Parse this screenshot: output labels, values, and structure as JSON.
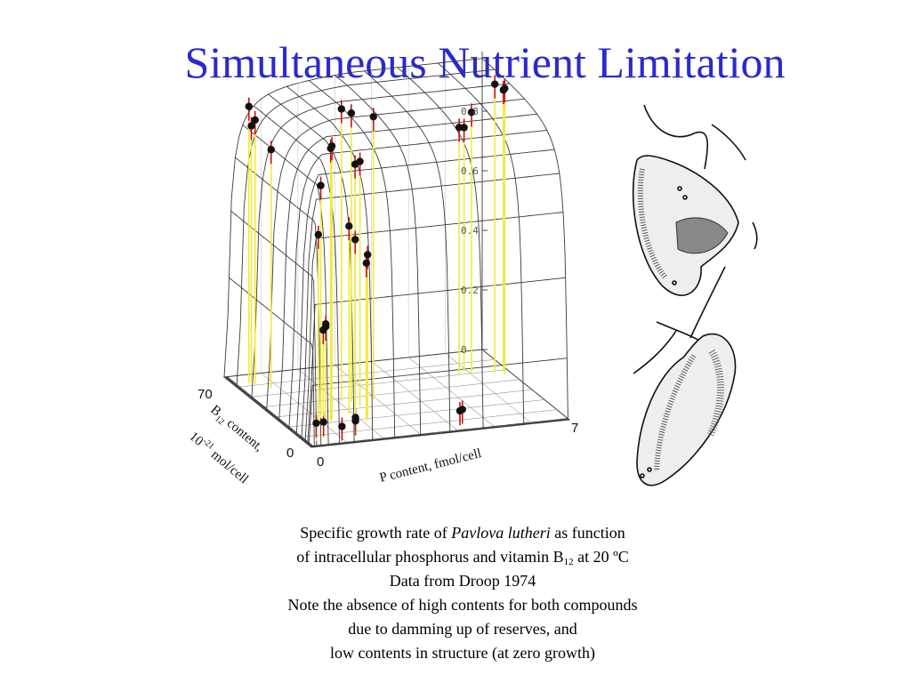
{
  "title": "Simultaneous Nutrient Limitation",
  "chart_data": {
    "type": "scatter",
    "projection": "3d-surface",
    "xlabel": "P content, fmol/cell",
    "ylabel": {
      "pre": "B",
      "sub": "12",
      "post": " content,",
      "line2_pre": "10",
      "line2_sup": "-21",
      "line2_post": " mol/cell"
    },
    "zlabel": "",
    "x_ticks": [
      "0",
      "7"
    ],
    "y_ticks": [
      "0",
      "70"
    ],
    "z_ticks": [
      "0",
      "0.2",
      "0.4",
      "0.6",
      "0.8"
    ],
    "xlim": [
      0,
      7
    ],
    "ylim": [
      0,
      70
    ],
    "zlim": [
      0,
      1
    ],
    "surface": "Droop model surface (growth rate over P and B12 cell quotas)",
    "points": [
      {
        "x": 0.4,
        "y": 62,
        "z": 0.93
      },
      {
        "x": 0.5,
        "y": 63,
        "z": 0.86
      },
      {
        "x": 0.5,
        "y": 60,
        "z": 0.89
      },
      {
        "x": 0.8,
        "y": 56,
        "z": 0.8
      },
      {
        "x": 0.3,
        "y": 5,
        "z": 0.06
      },
      {
        "x": 0.6,
        "y": 8,
        "z": 0.05
      },
      {
        "x": 1.2,
        "y": 20,
        "z": 0.92
      },
      {
        "x": 1.3,
        "y": 22,
        "z": 0.92
      },
      {
        "x": 1.1,
        "y": 25,
        "z": 0.78
      },
      {
        "x": 1.0,
        "y": 24,
        "z": 0.62
      },
      {
        "x": 1.0,
        "y": 18,
        "z": 0.34
      },
      {
        "x": 1.1,
        "y": 21,
        "z": 0.32
      },
      {
        "x": 1.2,
        "y": 26,
        "z": 0.29
      },
      {
        "x": 1.0,
        "y": 5,
        "z": 0.04
      },
      {
        "x": 1.4,
        "y": 6,
        "z": 0.05
      },
      {
        "x": 1.5,
        "y": 9,
        "z": 0.05
      },
      {
        "x": 2.1,
        "y": 38,
        "z": 0.98
      },
      {
        "x": 2.3,
        "y": 36,
        "z": 0.97
      },
      {
        "x": 2.2,
        "y": 30,
        "z": 0.82
      },
      {
        "x": 2.4,
        "y": 32,
        "z": 0.82
      },
      {
        "x": 1.9,
        "y": 26,
        "z": 0.63
      },
      {
        "x": 2.0,
        "y": 24,
        "z": 0.59
      },
      {
        "x": 2.2,
        "y": 20,
        "z": 0.55
      },
      {
        "x": 2.1,
        "y": 18,
        "z": 0.53
      },
      {
        "x": 2.9,
        "y": 36,
        "z": 0.95
      },
      {
        "x": 4.2,
        "y": 5,
        "z": 0.05
      },
      {
        "x": 4.3,
        "y": 6,
        "z": 0.05
      },
      {
        "x": 5.7,
        "y": 50,
        "z": 0.83
      },
      {
        "x": 5.9,
        "y": 52,
        "z": 0.82
      },
      {
        "x": 6.0,
        "y": 49,
        "z": 0.88
      },
      {
        "x": 6.6,
        "y": 48,
        "z": 0.97
      },
      {
        "x": 6.8,
        "y": 46,
        "z": 0.96
      },
      {
        "x": 6.9,
        "y": 50,
        "z": 0.94
      }
    ]
  },
  "caption": {
    "l1_pre": "Specific growth rate of ",
    "l1_species": "Pavlova lutheri",
    "l1_post": "  as function",
    "l2_pre": " of  intracellular phosphorus and vitamin B",
    "l2_sub": "12",
    "l2_post": " at 20 ºC",
    "l3": "Data from Droop 1974",
    "l4": "Note the absence of high contents for both compounds",
    "l5": "due to damming up of reserves, and",
    "l6": "low contents in structure (at zero growth)"
  },
  "colors": {
    "title": "#2a2ad0",
    "stem": "#f2ea3a",
    "error": "#cc1111",
    "point": "#111111",
    "mesh": "#3a3a3a"
  },
  "illustration": "pavlova-cell-drawing"
}
